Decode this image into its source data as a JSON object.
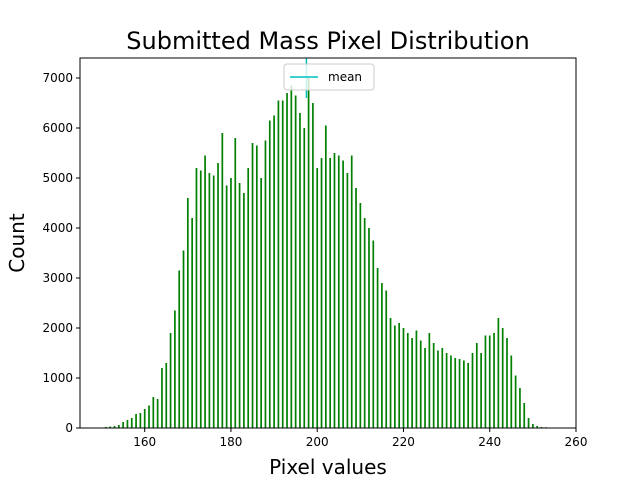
{
  "chart_data": {
    "type": "bar",
    "title": "Submitted Mass Pixel Distribution",
    "xlabel": "Pixel values",
    "ylabel": "Count",
    "xlim": [
      145,
      260
    ],
    "ylim": [
      0,
      7400
    ],
    "xticks": [
      160,
      180,
      200,
      220,
      240,
      260
    ],
    "yticks": [
      0,
      1000,
      2000,
      3000,
      4000,
      5000,
      6000,
      7000
    ],
    "bar_color": "#008000",
    "mean_line_color": "#00bfbf",
    "mean": 197.5,
    "legend": {
      "placement": "upper-center",
      "entries": [
        "mean"
      ]
    },
    "grid": false,
    "x": [
      151,
      152,
      153,
      154,
      155,
      156,
      157,
      158,
      159,
      160,
      161,
      162,
      163,
      164,
      165,
      166,
      167,
      168,
      169,
      170,
      171,
      172,
      173,
      174,
      175,
      176,
      177,
      178,
      179,
      180,
      181,
      182,
      183,
      184,
      185,
      186,
      187,
      188,
      189,
      190,
      191,
      192,
      193,
      194,
      195,
      196,
      197,
      198,
      199,
      200,
      201,
      202,
      203,
      204,
      205,
      206,
      207,
      208,
      209,
      210,
      211,
      212,
      213,
      214,
      215,
      216,
      217,
      218,
      219,
      220,
      221,
      222,
      223,
      224,
      225,
      226,
      227,
      228,
      229,
      230,
      231,
      232,
      233,
      234,
      235,
      236,
      237,
      238,
      239,
      240,
      241,
      242,
      243,
      244,
      245,
      246,
      247,
      248,
      249,
      250,
      251,
      252,
      253,
      254
    ],
    "values": [
      20,
      30,
      40,
      60,
      120,
      160,
      200,
      280,
      300,
      380,
      450,
      620,
      580,
      1200,
      1300,
      1900,
      2350,
      3150,
      3550,
      4600,
      4200,
      5200,
      5150,
      5450,
      5100,
      5050,
      5300,
      5900,
      4850,
      5000,
      5800,
      4900,
      4700,
      5200,
      5700,
      5650,
      5000,
      5750,
      6150,
      6250,
      6550,
      6550,
      6700,
      6850,
      6650,
      6300,
      6000,
      7000,
      6500,
      5200,
      5400,
      6050,
      5400,
      5500,
      5450,
      5350,
      5100,
      5450,
      4800,
      4500,
      4200,
      4000,
      3750,
      3200,
      2900,
      2750,
      2200,
      2050,
      2100,
      2000,
      1900,
      1800,
      1950,
      1750,
      1600,
      1900,
      1700,
      1550,
      1600,
      1500,
      1450,
      1400,
      1380,
      1350,
      1300,
      1500,
      1700,
      1500,
      1850,
      1850,
      1900,
      2200,
      2000,
      1800,
      1450,
      1050,
      800,
      500,
      200,
      80,
      40,
      20,
      15,
      10
    ]
  }
}
